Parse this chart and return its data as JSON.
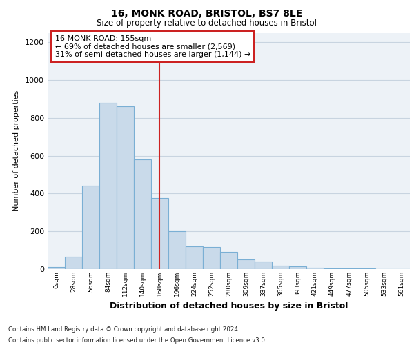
{
  "title1": "16, MONK ROAD, BRISTOL, BS7 8LE",
  "title2": "Size of property relative to detached houses in Bristol",
  "xlabel": "Distribution of detached houses by size in Bristol",
  "ylabel": "Number of detached properties",
  "categories": [
    "0sqm",
    "28sqm",
    "56sqm",
    "84sqm",
    "112sqm",
    "140sqm",
    "168sqm",
    "196sqm",
    "224sqm",
    "252sqm",
    "280sqm",
    "309sqm",
    "337sqm",
    "365sqm",
    "393sqm",
    "421sqm",
    "449sqm",
    "477sqm",
    "505sqm",
    "533sqm",
    "561sqm"
  ],
  "values": [
    10,
    65,
    440,
    880,
    860,
    580,
    375,
    200,
    120,
    115,
    90,
    50,
    40,
    20,
    15,
    8,
    5,
    3,
    2,
    1,
    0
  ],
  "bar_color": "#c9daea",
  "bar_edge_color": "#7aafd4",
  "plot_bg_color": "#edf2f7",
  "fig_bg_color": "#ffffff",
  "grid_color": "#c8d4e0",
  "red_line_x": 5.96,
  "ylim": [
    0,
    1250
  ],
  "yticks": [
    0,
    200,
    400,
    600,
    800,
    1000,
    1200
  ],
  "annotation_text": "16 MONK ROAD: 155sqm\n← 69% of detached houses are smaller (2,569)\n31% of semi-detached houses are larger (1,144) →",
  "annotation_box_facecolor": "#ffffff",
  "annotation_box_edgecolor": "#cc2222",
  "footnote1": "Contains HM Land Registry data © Crown copyright and database right 2024.",
  "footnote2": "Contains public sector information licensed under the Open Government Licence v3.0."
}
